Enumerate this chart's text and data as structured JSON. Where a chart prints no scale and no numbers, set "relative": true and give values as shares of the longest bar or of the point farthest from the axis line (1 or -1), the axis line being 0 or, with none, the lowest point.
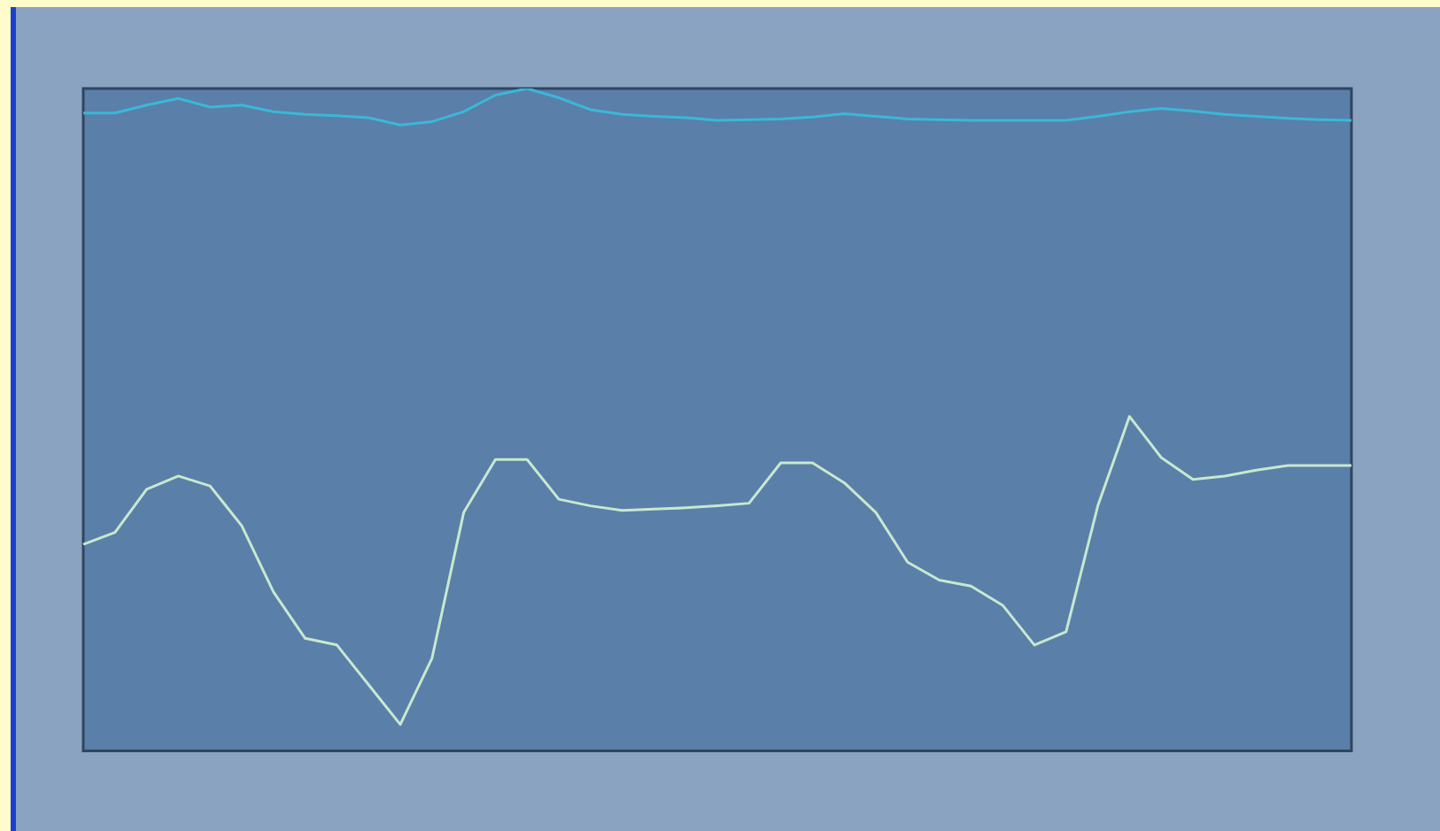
{
  "chart_data": {
    "type": "line",
    "relative": true,
    "marker": "none",
    "categories": [
      null,
      null,
      null,
      null,
      null,
      null,
      null,
      null,
      null,
      null,
      null,
      null,
      null,
      null,
      null,
      null,
      null,
      null,
      null,
      null,
      null,
      null,
      null,
      null,
      null,
      null,
      null,
      null,
      null,
      null,
      null,
      null,
      null,
      null,
      null,
      null,
      null,
      null,
      null,
      null,
      null
    ],
    "series": [
      {
        "color": "#3ab8d8",
        "values": [
          0.963,
          0.963,
          0.975,
          0.985,
          0.972,
          0.975,
          0.965,
          0.961,
          0.959,
          0.956,
          0.945,
          0.95,
          0.965,
          0.99,
          1,
          0.986,
          0.968,
          0.961,
          0.958,
          0.956,
          0.952,
          0.953,
          0.954,
          0.957,
          0.962,
          0.958,
          0.954,
          0.953,
          0.952,
          0.952,
          0.952,
          0.952,
          0.958,
          0.965,
          0.97,
          0.966,
          0.961,
          0.958,
          0.955,
          0.953,
          0.952
        ]
      },
      {
        "color": "#c8e8d0",
        "values": [
          0.312,
          0.33,
          0.395,
          0.415,
          0.4,
          0.34,
          0.24,
          0.17,
          0.16,
          0.1,
          0.04,
          0.14,
          0.36,
          0.44,
          0.44,
          0.38,
          0.37,
          0.363,
          0.365,
          0.367,
          0.37,
          0.374,
          0.435,
          0.435,
          0.405,
          0.36,
          0.285,
          0.258,
          0.249,
          0.22,
          0.16,
          0.18,
          0.37,
          0.505,
          0.443,
          0.41,
          0.415,
          0.424,
          0.431,
          0.431,
          0.431
        ]
      }
    ]
  }
}
